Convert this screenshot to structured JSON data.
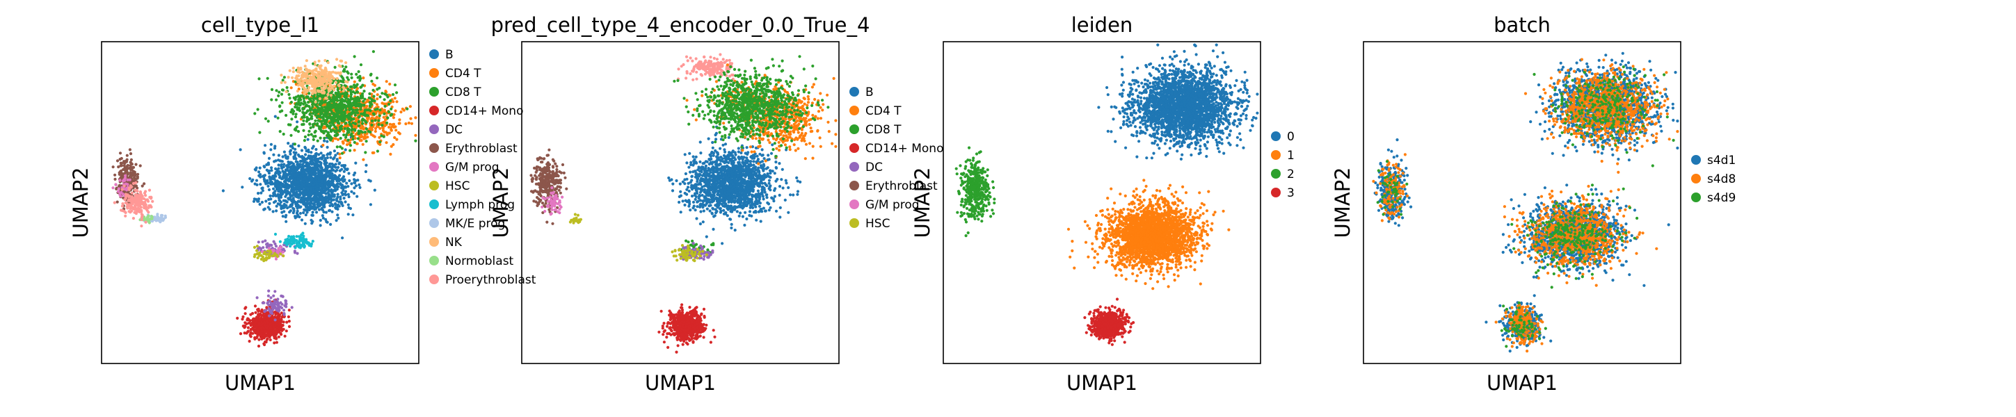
{
  "chart_data": [
    {
      "type": "scatter",
      "title": "cell_type_l1",
      "xlabel": "UMAP1",
      "ylabel": "UMAP2",
      "grid": false,
      "legend": "right",
      "series": [
        {
          "name": "B",
          "color": "#1f77b4",
          "clusters": [
            [
              0.65,
              0.44,
              0.12,
              0.09,
              1500
            ]
          ]
        },
        {
          "name": "CD4 T",
          "color": "#ff7f0e",
          "clusters": [
            [
              0.82,
              0.24,
              0.11,
              0.08,
              500
            ],
            [
              0.7,
              0.18,
              0.1,
              0.06,
              120
            ]
          ]
        },
        {
          "name": "CD8 T",
          "color": "#2ca02c",
          "clusters": [
            [
              0.73,
              0.2,
              0.14,
              0.09,
              900
            ]
          ]
        },
        {
          "name": "CD14+ Mono",
          "color": "#d62728",
          "clusters": [
            [
              0.52,
              0.88,
              0.05,
              0.04,
              600
            ]
          ]
        },
        {
          "name": "DC",
          "color": "#9467bd",
          "clusters": [
            [
              0.55,
              0.82,
              0.03,
              0.03,
              80
            ],
            [
              0.55,
              0.64,
              0.06,
              0.02,
              60
            ]
          ]
        },
        {
          "name": "Erythroblast",
          "color": "#8c564b",
          "clusters": [
            [
              0.08,
              0.43,
              0.03,
              0.06,
              250
            ]
          ]
        },
        {
          "name": "G/M prog",
          "color": "#e377c2",
          "clusters": [
            [
              0.07,
              0.45,
              0.02,
              0.03,
              30
            ],
            [
              0.55,
              0.66,
              0.03,
              0.02,
              25
            ]
          ]
        },
        {
          "name": "HSC",
          "color": "#bcbd22",
          "clusters": [
            [
              0.52,
              0.66,
              0.04,
              0.02,
              40
            ]
          ]
        },
        {
          "name": "Lymph prog",
          "color": "#17becf",
          "clusters": [
            [
              0.62,
              0.62,
              0.05,
              0.02,
              80
            ]
          ]
        },
        {
          "name": "MK/E prog",
          "color": "#aec7e8",
          "clusters": [
            [
              0.17,
              0.55,
              0.03,
              0.01,
              50
            ]
          ]
        },
        {
          "name": "NK",
          "color": "#ffbb78",
          "clusters": [
            [
              0.68,
              0.12,
              0.07,
              0.04,
              300
            ]
          ]
        },
        {
          "name": "Normoblast",
          "color": "#98df8a",
          "clusters": [
            [
              0.14,
              0.55,
              0.02,
              0.01,
              20
            ]
          ]
        },
        {
          "name": "Proerythroblast",
          "color": "#ff9896",
          "clusters": [
            [
              0.11,
              0.5,
              0.04,
              0.04,
              180
            ]
          ]
        }
      ]
    },
    {
      "type": "scatter",
      "title": "pred_cell_type_4_encoder_0.0_True_4",
      "xlabel": "UMAP1",
      "ylabel": "UMAP2",
      "grid": false,
      "legend": "right",
      "series": [
        {
          "name": "B",
          "color": "#1f77b4",
          "clusters": [
            [
              0.66,
              0.44,
              0.12,
              0.09,
              1500
            ]
          ]
        },
        {
          "name": "CD4 T",
          "color": "#ff7f0e",
          "clusters": [
            [
              0.82,
              0.24,
              0.11,
              0.08,
              500
            ],
            [
              0.7,
              0.18,
              0.1,
              0.06,
              120
            ]
          ]
        },
        {
          "name": "CD8 T",
          "color": "#2ca02c",
          "clusters": [
            [
              0.73,
              0.2,
              0.14,
              0.09,
              900
            ],
            [
              0.55,
              0.64,
              0.05,
              0.02,
              40
            ]
          ]
        },
        {
          "name": "CD14+ Mono",
          "color": "#d62728",
          "clusters": [
            [
              0.52,
              0.88,
              0.05,
              0.04,
              600
            ]
          ]
        },
        {
          "name": "DC",
          "color": "#9467bd",
          "clusters": [
            [
              0.55,
              0.66,
              0.05,
              0.02,
              70
            ]
          ]
        },
        {
          "name": "Erythroblast",
          "color": "#8c564b",
          "clusters": [
            [
              0.08,
              0.44,
              0.04,
              0.07,
              300
            ]
          ]
        },
        {
          "name": "G/M prog",
          "color": "#e377c2",
          "clusters": [
            [
              0.1,
              0.5,
              0.03,
              0.03,
              60
            ]
          ]
        },
        {
          "name": "HSC",
          "color": "#bcbd22",
          "clusters": [
            [
              0.52,
              0.66,
              0.04,
              0.02,
              60
            ],
            [
              0.17,
              0.55,
              0.02,
              0.01,
              25
            ]
          ]
        }
      ],
      "extra_clusters": [
        {
          "name": "Proerythroblast",
          "color": "#ff9896",
          "clusters": [
            [
              0.6,
              0.08,
              0.06,
              0.03,
              200
            ]
          ]
        }
      ]
    },
    {
      "type": "scatter",
      "title": "leiden",
      "xlabel": "UMAP1",
      "ylabel": "UMAP2",
      "grid": false,
      "legend": "right",
      "series": [
        {
          "name": "0",
          "color": "#1f77b4",
          "clusters": [
            [
              0.76,
              0.2,
              0.14,
              0.1,
              2600
            ]
          ]
        },
        {
          "name": "1",
          "color": "#ff7f0e",
          "clusters": [
            [
              0.66,
              0.6,
              0.13,
              0.09,
              2300
            ]
          ]
        },
        {
          "name": "2",
          "color": "#2ca02c",
          "clusters": [
            [
              0.1,
              0.46,
              0.04,
              0.08,
              400
            ]
          ]
        },
        {
          "name": "3",
          "color": "#d62728",
          "clusters": [
            [
              0.52,
              0.88,
              0.05,
              0.04,
              600
            ]
          ]
        }
      ]
    },
    {
      "type": "scatter",
      "title": "batch",
      "xlabel": "UMAP1",
      "ylabel": "UMAP2",
      "grid": false,
      "legend": "right",
      "series": [
        {
          "name": "s4d1",
          "color": "#1f77b4",
          "clusters": [
            [
              0.76,
              0.2,
              0.14,
              0.1,
              1400
            ],
            [
              0.66,
              0.6,
              0.13,
              0.09,
              1300
            ],
            [
              0.09,
              0.46,
              0.04,
              0.08,
              250
            ],
            [
              0.5,
              0.88,
              0.05,
              0.05,
              350
            ]
          ]
        },
        {
          "name": "s4d8",
          "color": "#ff7f0e",
          "clusters": [
            [
              0.76,
              0.2,
              0.14,
              0.1,
              900
            ],
            [
              0.66,
              0.6,
              0.13,
              0.09,
              800
            ],
            [
              0.09,
              0.46,
              0.04,
              0.08,
              120
            ],
            [
              0.5,
              0.88,
              0.05,
              0.05,
              200
            ]
          ]
        },
        {
          "name": "s4d9",
          "color": "#2ca02c",
          "clusters": [
            [
              0.76,
              0.2,
              0.14,
              0.1,
              250
            ],
            [
              0.66,
              0.6,
              0.13,
              0.09,
              250
            ],
            [
              0.09,
              0.46,
              0.04,
              0.08,
              40
            ],
            [
              0.5,
              0.88,
              0.05,
              0.05,
              60
            ]
          ]
        }
      ]
    }
  ]
}
